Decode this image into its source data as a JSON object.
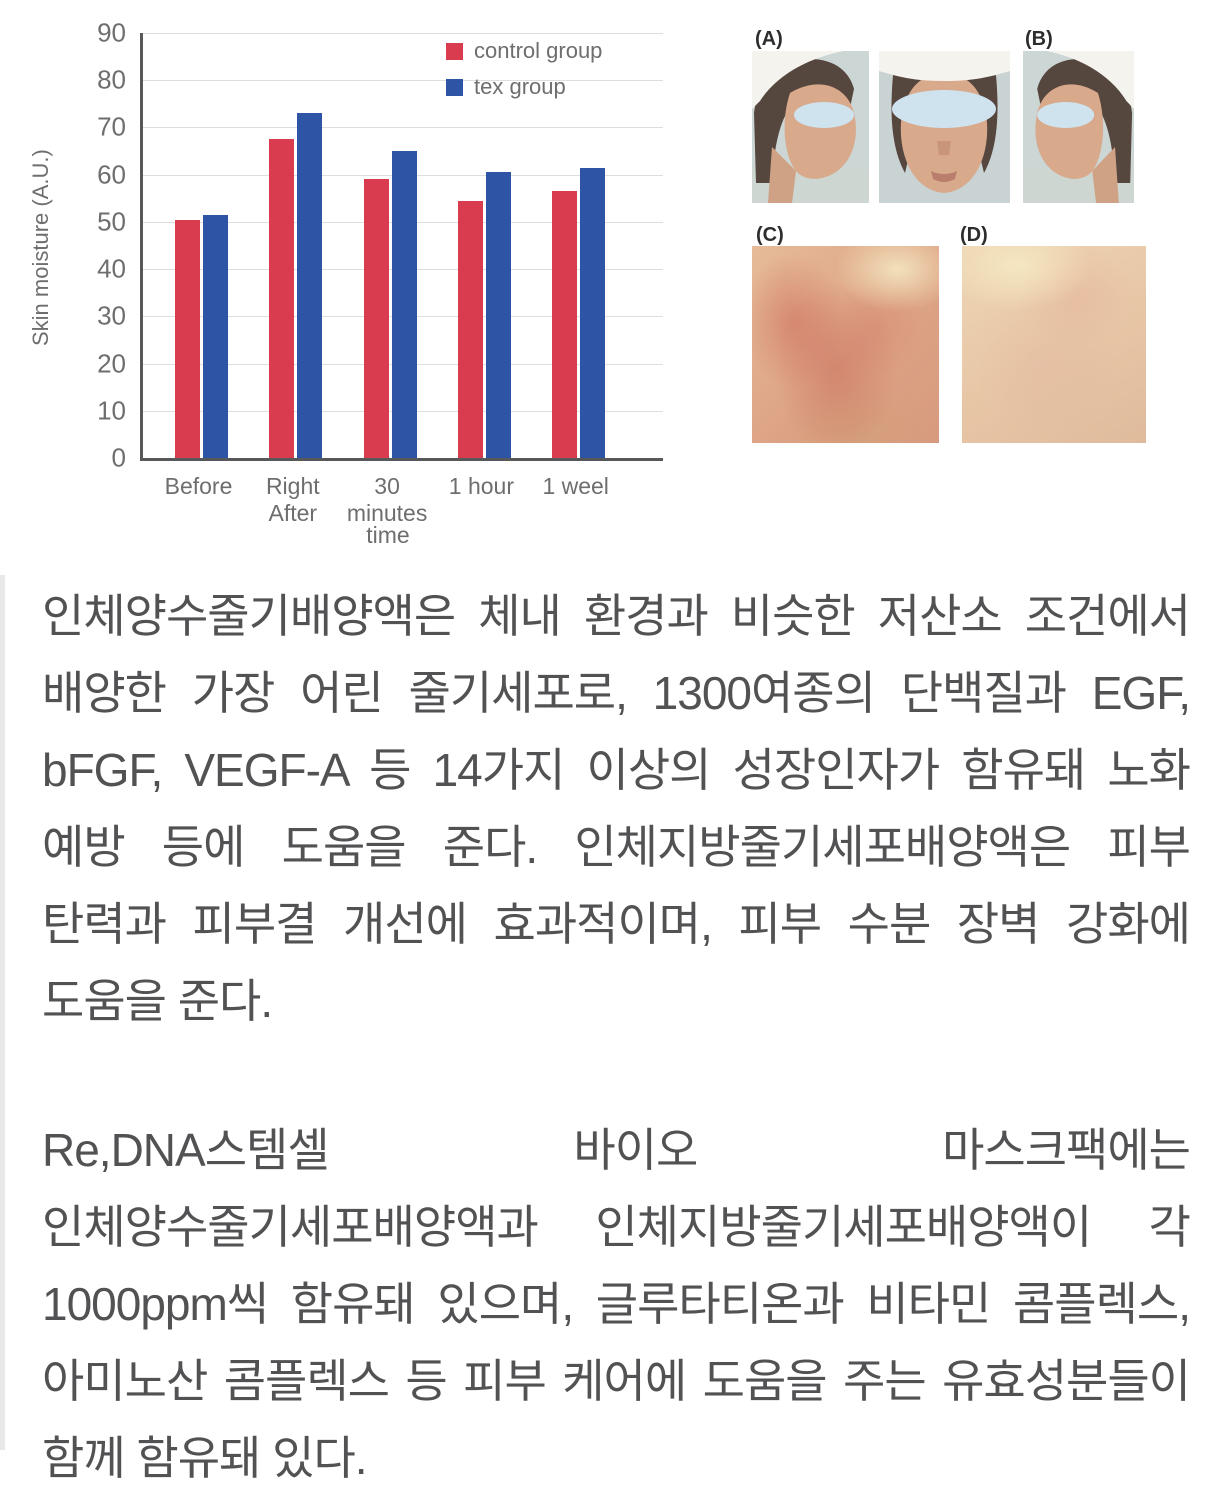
{
  "chart_data": {
    "type": "bar",
    "title": "",
    "ylabel": "Skin moisture (A.U.)",
    "xlabel": "time",
    "ylim": [
      0,
      90
    ],
    "ytick_step": 10,
    "grid": true,
    "legend_position": "top-right",
    "categories": [
      "Before",
      "Right\nAfter",
      "30\nminutes",
      "1 hour",
      "1 weel"
    ],
    "series": [
      {
        "name": "control group",
        "color": "#d93b4f",
        "values": [
          50.5,
          67.5,
          59,
          54.5,
          56.5
        ]
      },
      {
        "name": "tex group",
        "color": "#2e55a5",
        "values": [
          51.5,
          73,
          65,
          60.5,
          61.5
        ]
      }
    ],
    "axis_color": "#57585a",
    "grid_color": "#dedede",
    "tick_color": "#6e6e6e"
  },
  "figure_panel": {
    "labels": [
      "(A)",
      "(B)",
      "(C)",
      "(D)"
    ],
    "eye_censor_color": "#cfe3ef"
  },
  "article": {
    "paragraph1": "인체양수줄기배양액은 체내 환경과 비슷한 저산소 조건에서 배양한 가장 어린 줄기세포로, 1300여종의 단백질과 EGF, bFGF, VEGF-A 등 14가지 이상의 성장인자가 함유돼 노화 예방 등에 도움을 준다. 인체지방줄기세포배양액은 피부 탄력과 피부결 개선에 효과적이며, 피부 수분 장벽 강화에 도움을 준다.",
    "paragraph2": "Re,DNA스템셀 바이오 마스크팩에는 인체양수줄기세포배양액과 인체지방줄기세포배양액이 각 1000ppm씩 함유돼 있으며, 글루타티온과 비타민 콤플렉스, 아미노산 콤플렉스 등 피부 케어에 도움을 주는 유효성분들이 함께 함유돼 있다."
  }
}
